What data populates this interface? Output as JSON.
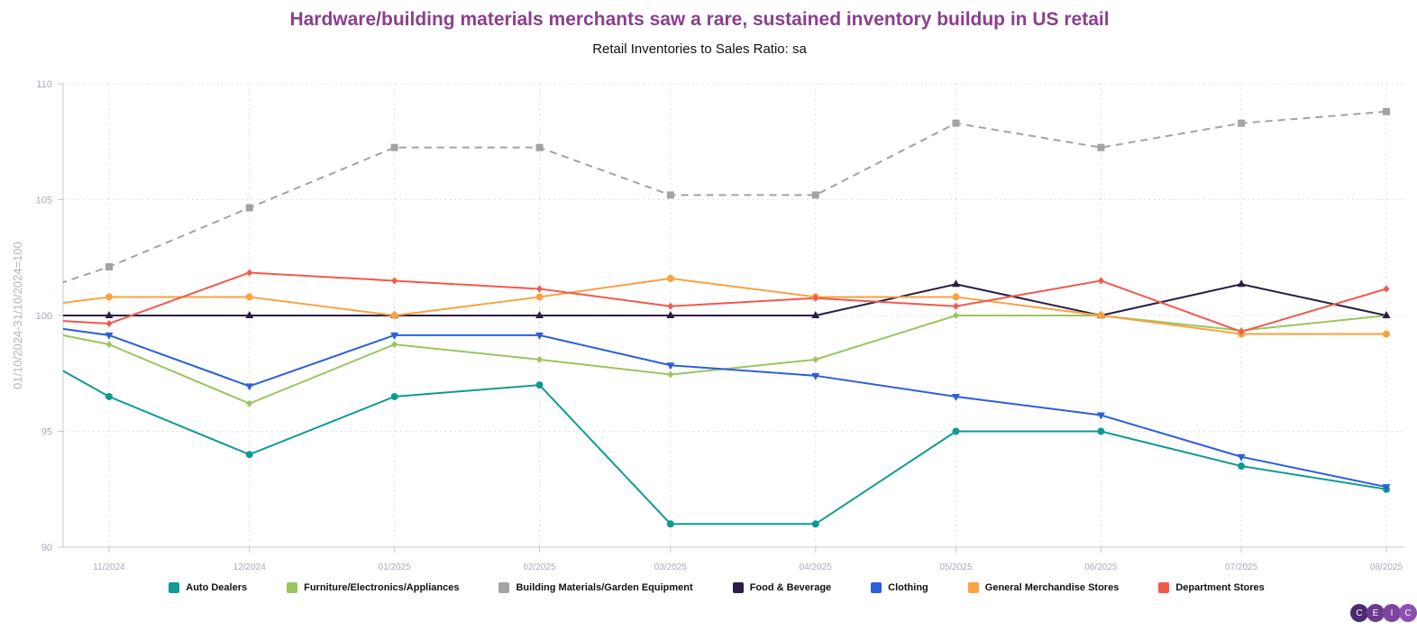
{
  "chart_data": {
    "type": "line",
    "title": "Hardware/building materials merchants saw a rare, sustained inventory buildup in US retail",
    "subtitle": "Retail Inventories to Sales Ratio: sa",
    "ylabel": "01/10/2024-31/10/2024=100",
    "xlabel": "",
    "ylim": [
      90,
      110
    ],
    "yticks": [
      "90",
      "95",
      "100",
      "105",
      "110"
    ],
    "x": [
      "2024-10-01",
      "2024-11-01",
      "2024-12-01",
      "2025-01-01",
      "2025-02-01",
      "2025-03-01",
      "2025-04-01",
      "2025-05-01",
      "2025-06-01",
      "2025-07-01",
      "2025-08-01"
    ],
    "xtick_labels": [
      "11/2024",
      "12/2024",
      "01/2025",
      "02/2025",
      "03/2025",
      "04/2025",
      "05/2025",
      "06/2025",
      "07/2025",
      "08/2025"
    ],
    "grid": true,
    "legend_position": "bottom",
    "series": [
      {
        "name": "Auto Dealers",
        "color": "#0f9a94",
        "marker": "circle",
        "dashed": false,
        "values": [
          100,
          96.5,
          94.0,
          96.5,
          97.0,
          91.0,
          91.0,
          95.0,
          95.0,
          93.5,
          92.5
        ]
      },
      {
        "name": "Furniture/Electronics/Appliances",
        "color": "#9bc55d",
        "marker": "diamond",
        "dashed": false,
        "values": [
          100,
          98.75,
          96.2,
          98.75,
          98.1,
          97.45,
          98.1,
          100,
          100,
          99.35,
          100
        ]
      },
      {
        "name": "Building Materials/Garden Equipment",
        "color": "#a3a3a3",
        "marker": "square",
        "dashed": true,
        "values": [
          100,
          102.1,
          104.65,
          107.25,
          107.25,
          105.2,
          105.2,
          108.3,
          107.25,
          108.3,
          108.8
        ]
      },
      {
        "name": "Food & Beverage",
        "color": "#2b1d45",
        "marker": "triangle-up",
        "dashed": false,
        "values": [
          100,
          100,
          100,
          100,
          100,
          100,
          100,
          101.35,
          100,
          101.35,
          100
        ]
      },
      {
        "name": "Clothing",
        "color": "#2b5fd9",
        "marker": "triangle-down",
        "dashed": false,
        "values": [
          100,
          99.15,
          96.95,
          99.15,
          99.15,
          97.85,
          97.4,
          96.5,
          95.7,
          93.9,
          92.6
        ]
      },
      {
        "name": "General Merchandise Stores",
        "color": "#f9a23f",
        "marker": "circle",
        "dashed": false,
        "values": [
          100,
          100.8,
          100.8,
          100,
          100.8,
          101.6,
          100.8,
          100.8,
          100,
          99.2,
          99.2
        ]
      },
      {
        "name": "Department Stores",
        "color": "#f4584a",
        "marker": "diamond",
        "dashed": false,
        "values": [
          100,
          99.65,
          101.85,
          101.5,
          101.15,
          100.4,
          100.75,
          100.4,
          101.5,
          99.3,
          101.15
        ]
      }
    ]
  },
  "logo": {
    "letters": [
      "C",
      "E",
      "I",
      "C"
    ],
    "colors": [
      "#4b2a6e",
      "#6b3a8e",
      "#7d44a0",
      "#8d4fb0"
    ]
  }
}
